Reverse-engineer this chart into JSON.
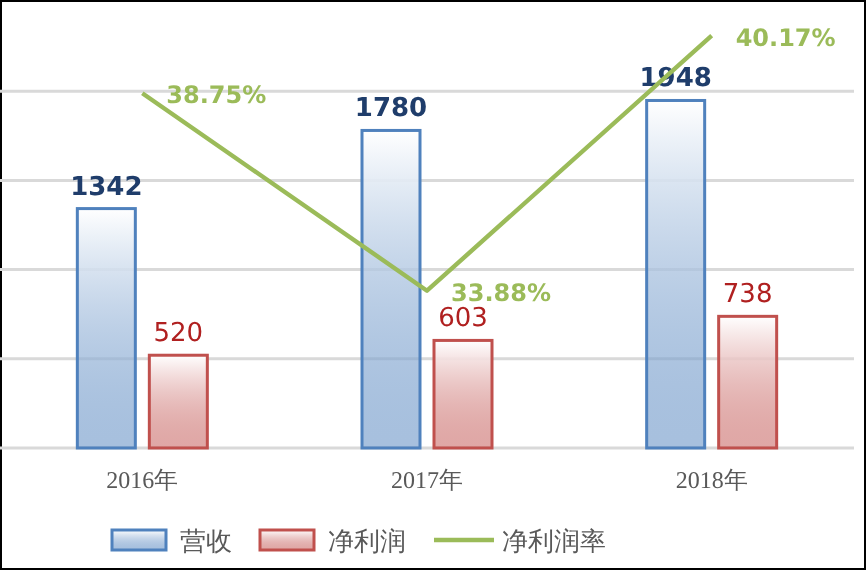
{
  "chart_data": {
    "type": "bar",
    "categories": [
      "2016年",
      "2017年",
      "2018年"
    ],
    "series": [
      {
        "name": "营收",
        "color": "#4f81bd",
        "values": [
          1342,
          1780,
          1948
        ]
      },
      {
        "name": "净利润",
        "color": "#c0504d",
        "values": [
          520,
          603,
          738
        ]
      },
      {
        "name": "净利润率",
        "type": "line",
        "axis": "y2",
        "color": "#9bbb59",
        "values": [
          38.75,
          33.88,
          40.17
        ],
        "value_labels": [
          "38.75%",
          "33.88%",
          "40.17%"
        ]
      }
    ],
    "ylim": [
      0,
      2500
    ],
    "yticks": [
      {
        "value": 0,
        "label": null
      },
      {
        "value": 500,
        "label": null
      },
      {
        "value": 1000,
        "label": null
      },
      {
        "value": 1500,
        "label": null
      },
      {
        "value": 2000,
        "label": null
      }
    ],
    "y2lim": [
      30,
      41
    ],
    "grid": "y",
    "legend": "bottom",
    "data_labels": true,
    "tick_labels": "x",
    "marker": "none",
    "line_style": "solid"
  }
}
